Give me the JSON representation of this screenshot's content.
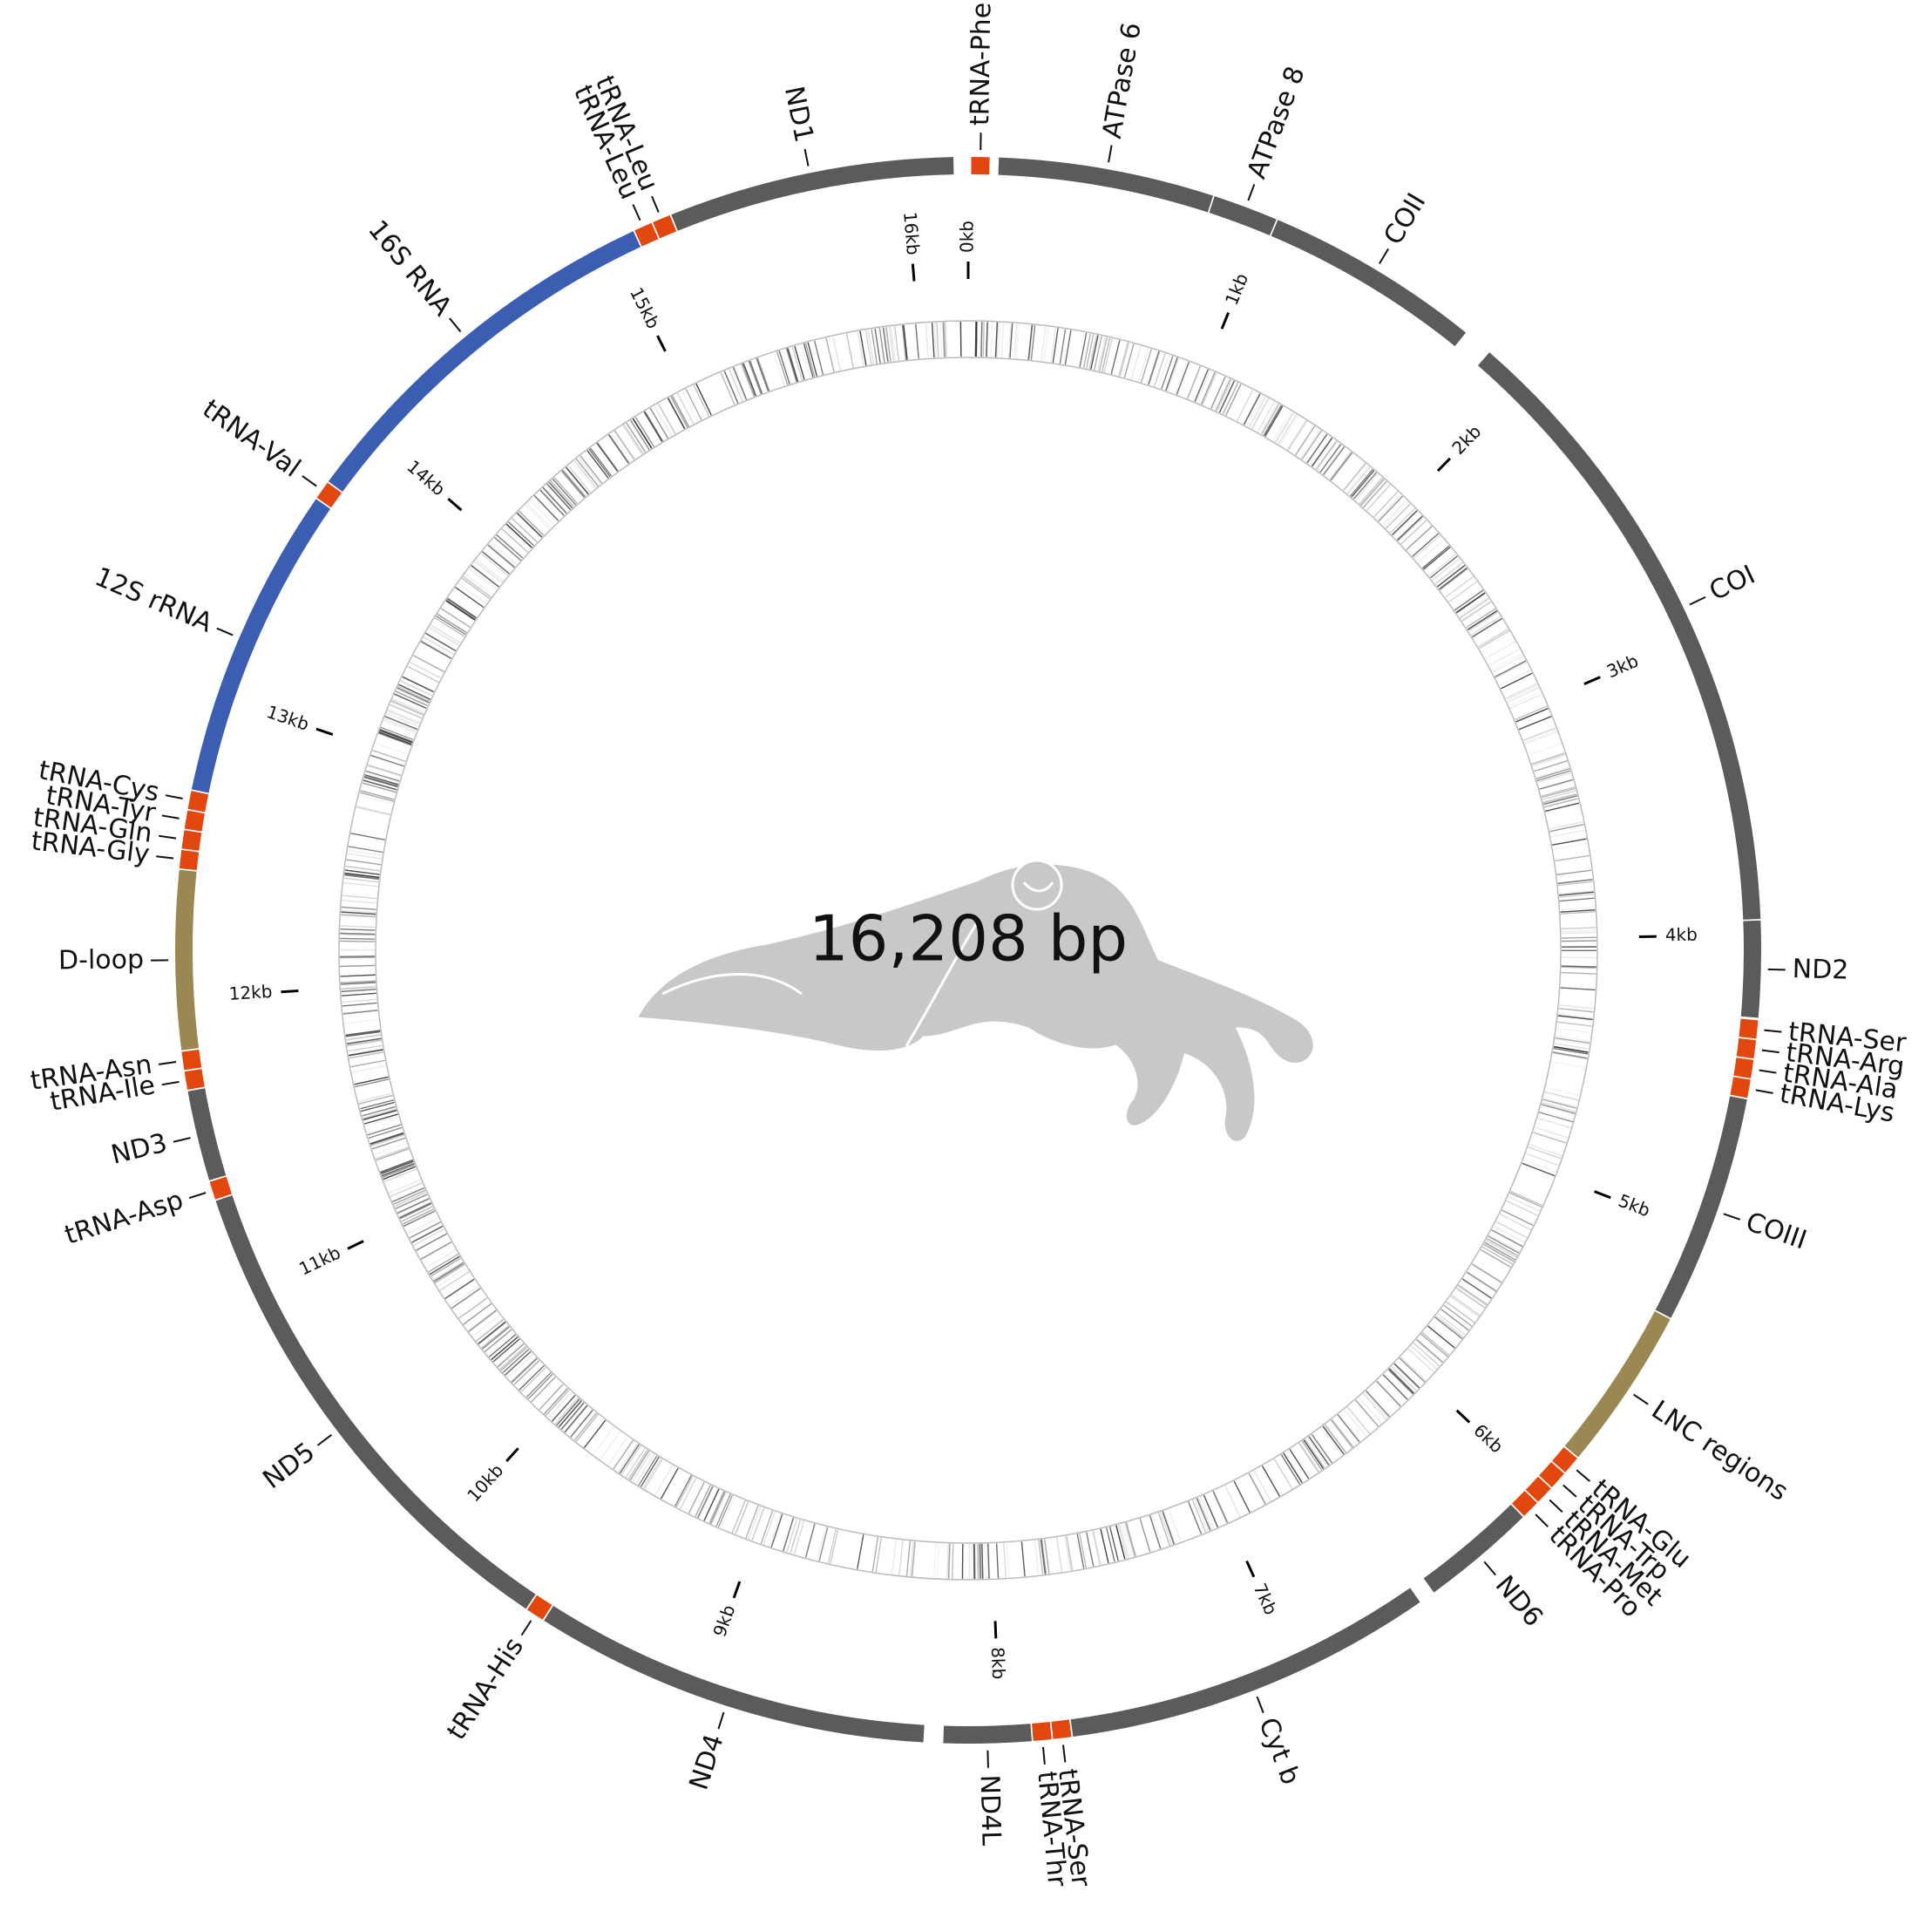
{
  "genome_length": 16208,
  "center_label": "16,208 bp",
  "colors": {
    "protein": "#5b5b5b",
    "rRNA": "#3b5db2",
    "tRNA": "#e2470f",
    "noncoding": "#9a8752"
  },
  "genes": [
    {
      "name": "tRNA-Phe",
      "type": "tRNA",
      "start": 10,
      "end": 70
    },
    {
      "name": "ATPase 6",
      "type": "protein",
      "start": 100,
      "end": 810
    },
    {
      "name": "ATPase 8",
      "type": "protein",
      "start": 815,
      "end": 1030
    },
    {
      "name": "COII",
      "type": "protein",
      "start": 1035,
      "end": 1750
    },
    {
      "name": "COI",
      "type": "protein",
      "start": 1850,
      "end": 3950
    },
    {
      "name": "ND2",
      "type": "protein",
      "start": 3955,
      "end": 4272
    },
    {
      "name": "tRNA-Ser",
      "type": "tRNA",
      "start": 4280,
      "end": 4340
    },
    {
      "name": "tRNA-Arg",
      "type": "tRNA",
      "start": 4345,
      "end": 4405
    },
    {
      "name": "tRNA-Ala",
      "type": "tRNA",
      "start": 4410,
      "end": 4470
    },
    {
      "name": "tRNA-Lys",
      "type": "tRNA",
      "start": 4475,
      "end": 4535
    },
    {
      "name": "COIII",
      "type": "protein",
      "start": 4540,
      "end": 5295
    },
    {
      "name": "LNC regions",
      "type": "noncoding",
      "start": 5300,
      "end": 5840
    },
    {
      "name": "tRNA-Glu",
      "type": "tRNA",
      "start": 5845,
      "end": 5905
    },
    {
      "name": "tRNA-Trp",
      "type": "tRNA",
      "start": 5910,
      "end": 5970
    },
    {
      "name": "tRNA-Met",
      "type": "tRNA",
      "start": 5975,
      "end": 6035
    },
    {
      "name": "tRNA-Pro",
      "type": "tRNA",
      "start": 6040,
      "end": 6100
    },
    {
      "name": "ND6",
      "type": "protein",
      "start": 6105,
      "end": 6485
    },
    {
      "name": "Cyt b",
      "type": "protein",
      "start": 6540,
      "end": 7762
    },
    {
      "name": "tRNA-Ser",
      "type": "tRNA",
      "start": 7767,
      "end": 7827
    },
    {
      "name": "tRNA-Thr",
      "type": "tRNA",
      "start": 7832,
      "end": 7892
    },
    {
      "name": "ND4L",
      "type": "protein",
      "start": 7897,
      "end": 8185
    },
    {
      "name": "ND4",
      "type": "protein",
      "start": 8250,
      "end": 9560
    },
    {
      "name": "tRNA-His",
      "type": "tRNA",
      "start": 9565,
      "end": 9625
    },
    {
      "name": "ND5",
      "type": "protein",
      "start": 9630,
      "end": 11327
    },
    {
      "name": "tRNA-Asp",
      "type": "tRNA",
      "start": 11332,
      "end": 11392
    },
    {
      "name": "ND3",
      "type": "protein",
      "start": 11397,
      "end": 11695
    },
    {
      "name": "tRNA-Ile",
      "type": "tRNA",
      "start": 11700,
      "end": 11760
    },
    {
      "name": "tRNA-Asn",
      "type": "tRNA",
      "start": 11765,
      "end": 11825
    },
    {
      "name": "D-loop",
      "type": "noncoding",
      "start": 11830,
      "end": 12418
    },
    {
      "name": "tRNA-Gly",
      "type": "tRNA",
      "start": 12423,
      "end": 12483
    },
    {
      "name": "tRNA-Gln",
      "type": "tRNA",
      "start": 12488,
      "end": 12548
    },
    {
      "name": "tRNA-Tyr",
      "type": "tRNA",
      "start": 12553,
      "end": 12613
    },
    {
      "name": "tRNA-Cys",
      "type": "tRNA",
      "start": 12618,
      "end": 12678
    },
    {
      "name": "12S rRNA",
      "type": "rRNA",
      "start": 12683,
      "end": 13717
    },
    {
      "name": "tRNA-Val",
      "type": "tRNA",
      "start": 13722,
      "end": 13782
    },
    {
      "name": "16S RNA",
      "type": "rRNA",
      "start": 13787,
      "end": 15083
    },
    {
      "name": "tRNA-Leu",
      "type": "tRNA",
      "start": 15088,
      "end": 15148
    },
    {
      "name": "tRNA-Leu",
      "type": "tRNA",
      "start": 15153,
      "end": 15213
    },
    {
      "name": "ND1",
      "type": "protein",
      "start": 15218,
      "end": 16160
    }
  ],
  "ticks": [
    {
      "value": 0,
      "label": "0kb"
    },
    {
      "value": 1000,
      "label": "1kb"
    },
    {
      "value": 2000,
      "label": "2kb"
    },
    {
      "value": 3000,
      "label": "3kb"
    },
    {
      "value": 4000,
      "label": "4kb"
    },
    {
      "value": 5000,
      "label": "5kb"
    },
    {
      "value": 6000,
      "label": "6kb"
    },
    {
      "value": 7000,
      "label": "7kb"
    },
    {
      "value": 8000,
      "label": "8kb"
    },
    {
      "value": 9000,
      "label": "9kb"
    },
    {
      "value": 10000,
      "label": "10kb"
    },
    {
      "value": 11000,
      "label": "11kb"
    },
    {
      "value": 12000,
      "label": "12kb"
    },
    {
      "value": 13000,
      "label": "13kb"
    },
    {
      "value": 14000,
      "label": "14kb"
    },
    {
      "value": 15000,
      "label": "15kb"
    },
    {
      "value": 16000,
      "label": "16kb"
    }
  ]
}
